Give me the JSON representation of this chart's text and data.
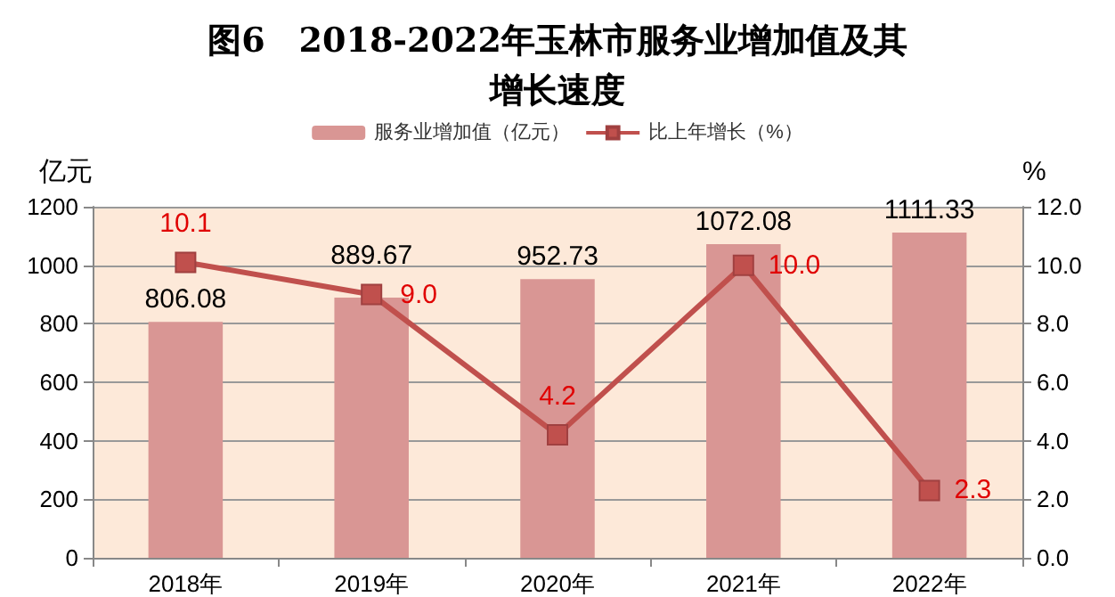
{
  "chart_data": {
    "type": "bar",
    "title": "图6　2018-2022年玉林市服务业增加值及其增长速度",
    "categories": [
      "2018年",
      "2019年",
      "2020年",
      "2021年",
      "2022年"
    ],
    "series": [
      {
        "name": "服务业增加值（亿元）",
        "color": "#d99694",
        "values": [
          806.08,
          889.67,
          952.73,
          1072.08,
          1111.33
        ]
      },
      {
        "name": "比上年增长（%）",
        "type": "line",
        "axis": "y2",
        "color": "#c0504d",
        "values": [
          10.1,
          9.0,
          4.2,
          10.0,
          2.3
        ],
        "value_labels": [
          "10.1",
          "9.0",
          "4.2",
          "10.0",
          "2.3"
        ]
      }
    ],
    "ylabel": "亿元",
    "y2label": "%",
    "ylim": [
      0,
      1200
    ],
    "yticks": [
      0,
      200,
      400,
      600,
      800,
      1000,
      1200
    ],
    "y2lim": [
      0,
      12
    ],
    "y2ticks": [
      {
        "value": 0,
        "label": "0.0"
      },
      {
        "value": 2,
        "label": "2.0"
      },
      {
        "value": 4,
        "label": "4.0"
      },
      {
        "value": 6,
        "label": "6.0"
      },
      {
        "value": 8,
        "label": "8.0"
      },
      {
        "value": 10,
        "label": "10.0"
      },
      {
        "value": 12,
        "label": "12.0"
      }
    ],
    "data_labels": true,
    "grid": "y",
    "legend": "top",
    "marker": "square"
  }
}
